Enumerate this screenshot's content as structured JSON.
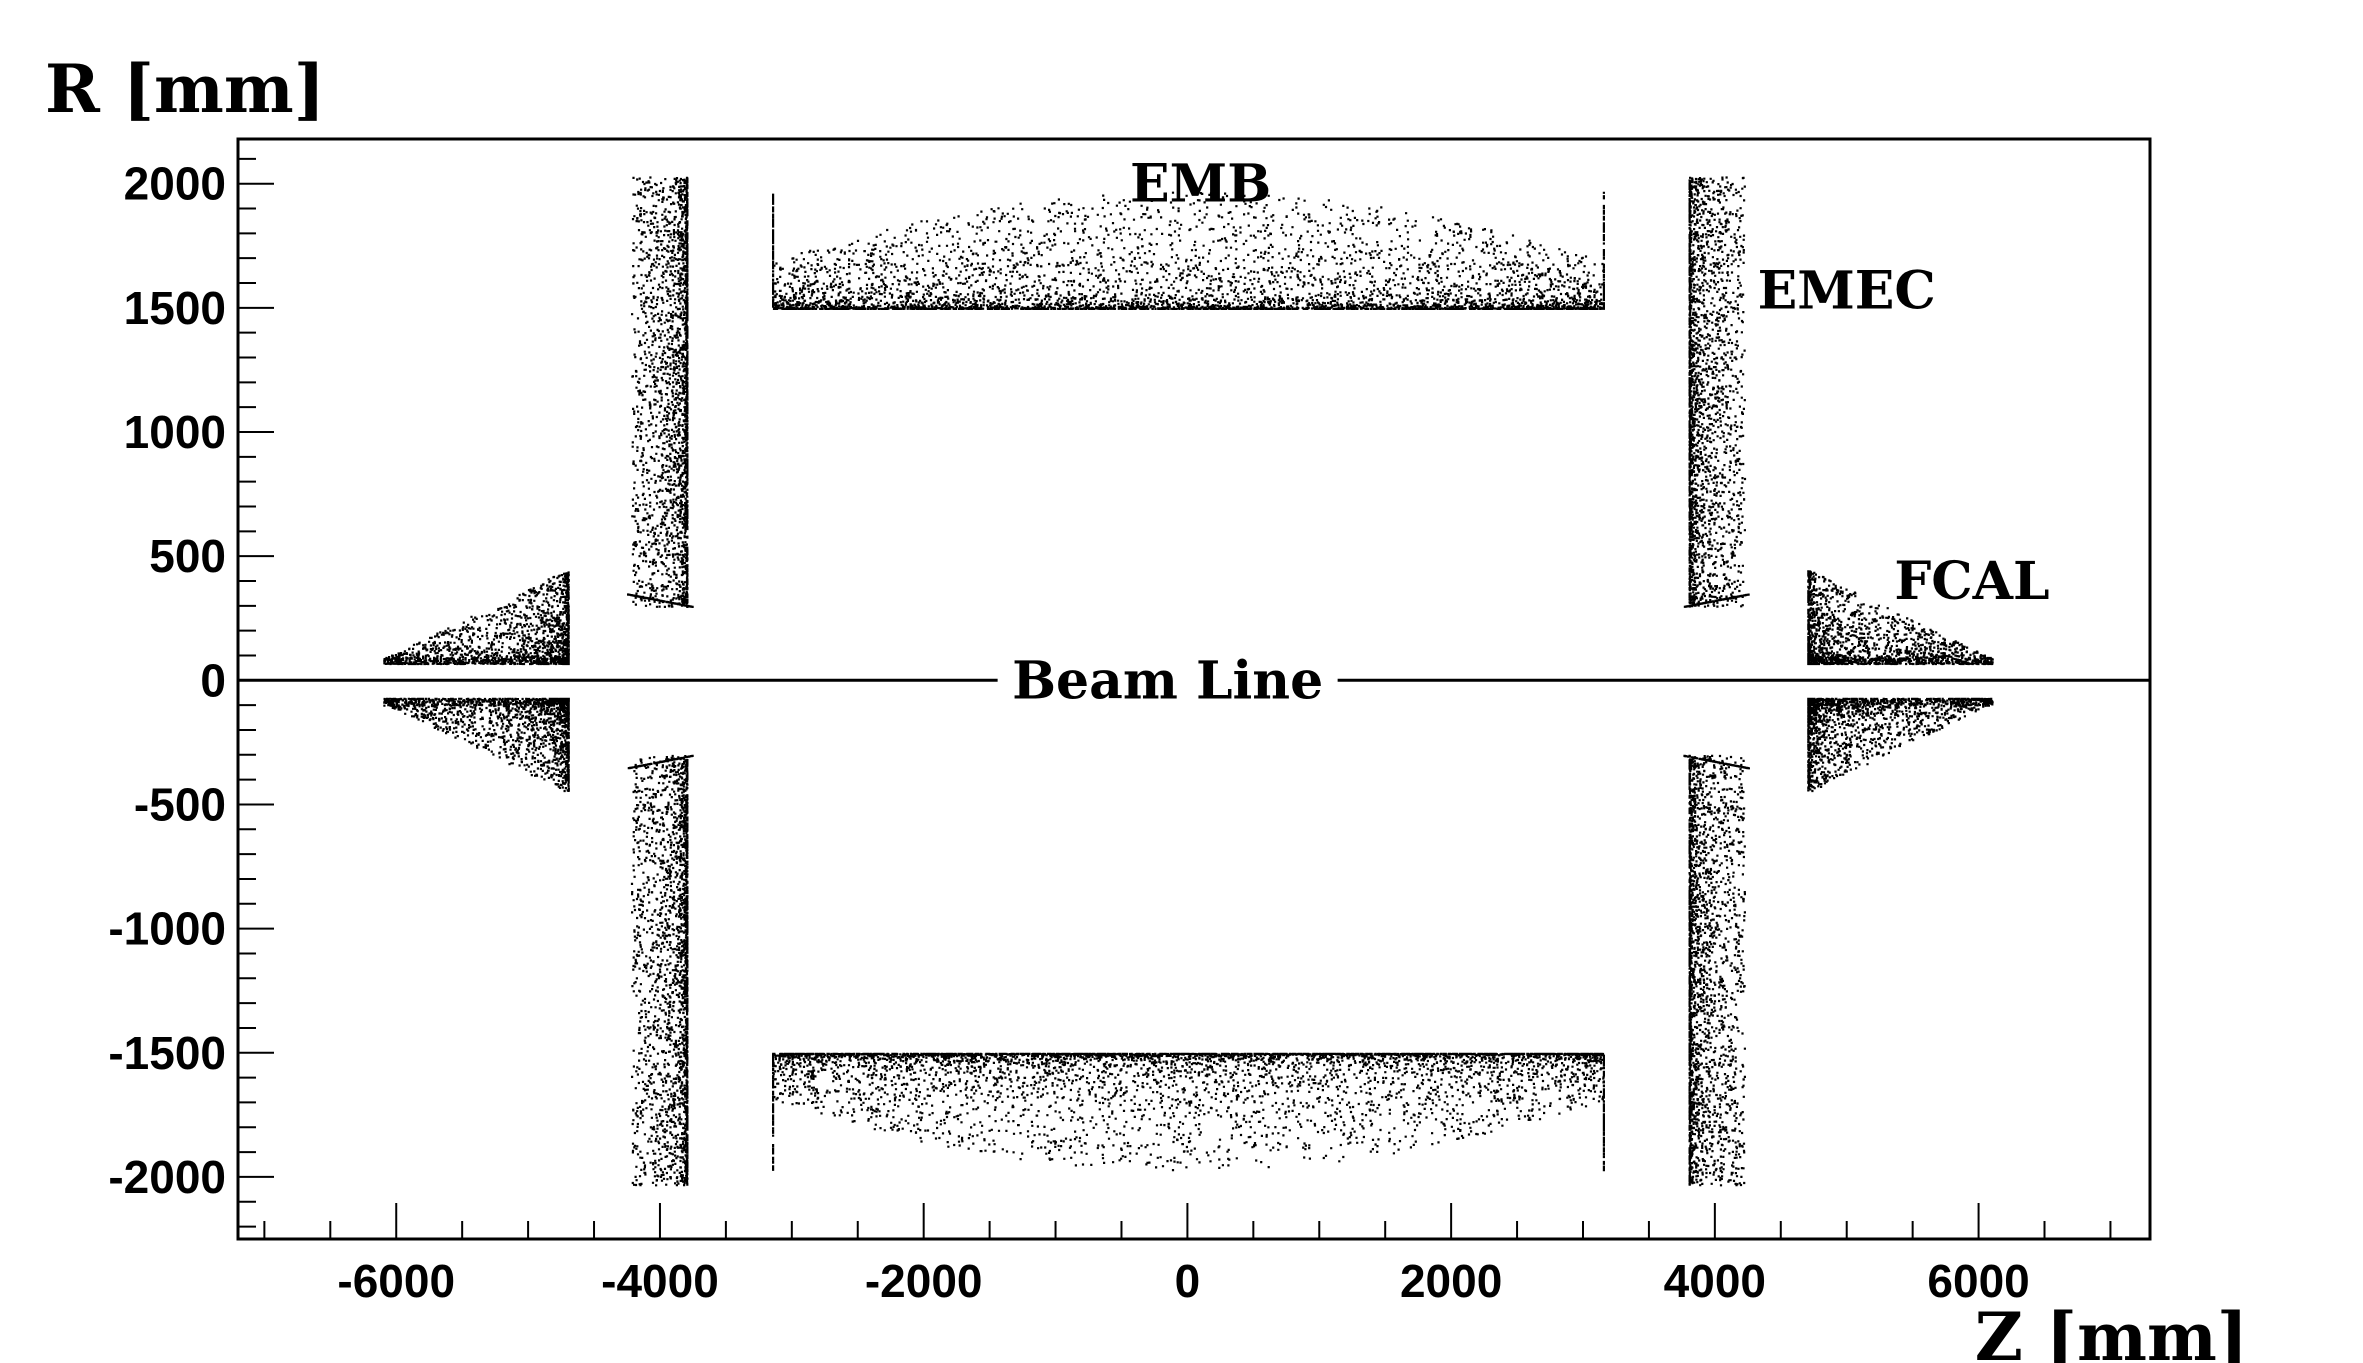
{
  "chart_data": {
    "type": "scatter",
    "title": "",
    "xlabel": "Z [mm]",
    "ylabel": "R [mm]",
    "xlim": [
      -7200,
      7300
    ],
    "ylim": [
      -2250,
      2180
    ],
    "xticks": [
      -6000,
      -4000,
      -2000,
      0,
      2000,
      4000,
      6000
    ],
    "xtick_labels": [
      "-6000",
      "-4000",
      "-2000",
      "0",
      "2000",
      "4000",
      "6000"
    ],
    "yticks": [
      2000,
      1500,
      1000,
      500,
      0,
      -500,
      -1000,
      -1500,
      -2000
    ],
    "ytick_labels": [
      "2000",
      "1500",
      "1000",
      "500",
      "0",
      "-500",
      "-1000",
      "-1500",
      "-2000"
    ],
    "grid": false,
    "legend": "none",
    "reference_line": {
      "label": "Beam Line",
      "y": 0
    },
    "annotations": [
      {
        "text": "EMB",
        "x": 100,
        "y": 2000
      },
      {
        "text": "EMEC",
        "x": 5000,
        "y": 1570
      },
      {
        "text": "FCAL",
        "x": 5950,
        "y": 400
      },
      {
        "text": "Beam Line",
        "x": -150,
        "y": 0
      }
    ],
    "regions": [
      {
        "name": "EMB",
        "z_range": [
          -3150,
          3150
        ],
        "r_range": [
          1500,
          1970
        ],
        "dense_edge": 1500
      },
      {
        "name": "EMEC",
        "z_range": [
          -4250,
          -3740
        ],
        "r_range": [
          300,
          2030
        ],
        "dense_edge_z": -3800
      },
      {
        "name": "EMEC",
        "z_range": [
          3740,
          4250
        ],
        "r_range": [
          300,
          2030
        ],
        "dense_edge_z": 3800
      },
      {
        "name": "FCAL",
        "z_range": [
          -6100,
          -4680
        ],
        "r_range": [
          70,
          450
        ],
        "dense_edge_z": -4700
      },
      {
        "name": "FCAL",
        "z_range": [
          4680,
          6100
        ],
        "r_range": [
          70,
          450
        ],
        "dense_edge_z": 4700
      }
    ],
    "marker_color": "#000000"
  }
}
